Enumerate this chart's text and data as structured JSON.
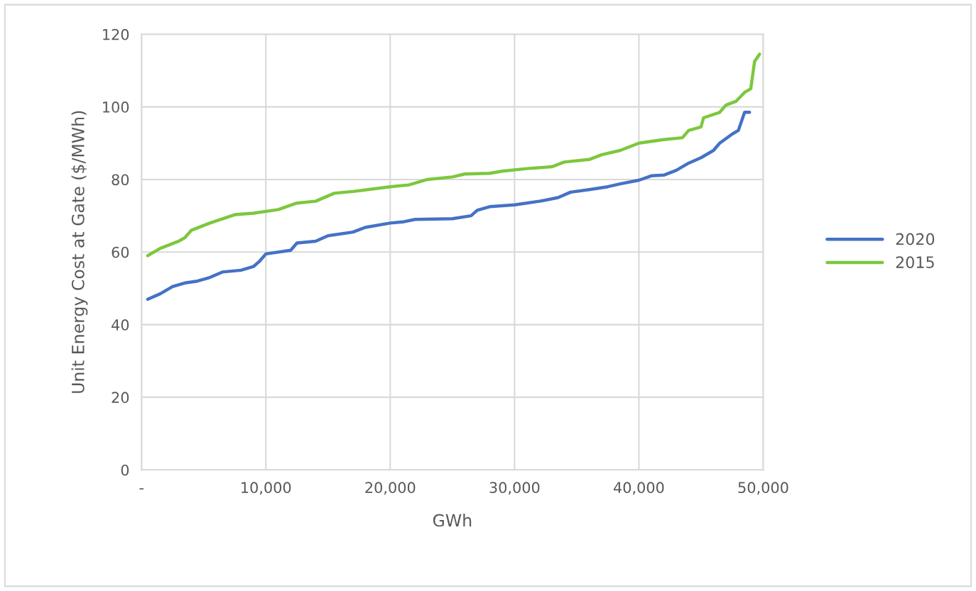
{
  "chart_data": {
    "type": "line",
    "xlabel": "GWh",
    "ylabel": "Unit Energy Cost at Gate ($/MWh)",
    "xlim": [
      0,
      50000
    ],
    "xticks": [
      {
        "value": 0,
        "label": "-"
      },
      {
        "value": 10000,
        "label": "10,000"
      },
      {
        "value": 20000,
        "label": "20,000"
      },
      {
        "value": 30000,
        "label": "30,000"
      },
      {
        "value": 40000,
        "label": "40,000"
      },
      {
        "value": 50000,
        "label": "50,000"
      }
    ],
    "ylim": [
      0,
      120
    ],
    "yticks": [
      0,
      20,
      40,
      60,
      80,
      100,
      120
    ],
    "grid": true,
    "legend": "right",
    "marker": "none",
    "line_style": "solid",
    "series": [
      {
        "name": "2020",
        "color": "#4472c4",
        "x": [
          500,
          1500,
          2500,
          3500,
          4500,
          5500,
          6500,
          8000,
          9000,
          9500,
          10000,
          12000,
          12500,
          14000,
          15000,
          17000,
          18000,
          20000,
          21000,
          22000,
          25000,
          26500,
          27000,
          28000,
          30000,
          32000,
          33500,
          34500,
          36000,
          37500,
          38500,
          40000,
          41000,
          42000,
          43000,
          44000,
          45000,
          46000,
          46500,
          47500,
          48000,
          48500,
          48900
        ],
        "values": [
          47,
          48.5,
          50.5,
          51.5,
          52,
          53,
          54.5,
          55,
          56,
          57.5,
          59.5,
          60.5,
          62.5,
          63,
          64.5,
          65.5,
          66.8,
          68,
          68.3,
          69,
          69.2,
          70,
          71.5,
          72.5,
          73,
          74,
          75,
          76.5,
          77.2,
          78,
          78.8,
          79.8,
          81,
          81.2,
          82.5,
          84.5,
          86,
          88,
          90,
          92.5,
          93.5,
          98.5,
          98.5
        ]
      },
      {
        "name": "2015",
        "color": "#7dc73e",
        "x": [
          500,
          1500,
          3000,
          3500,
          4000,
          5500,
          7500,
          9000,
          11000,
          12500,
          14000,
          15500,
          17000,
          20000,
          21500,
          23000,
          25000,
          26000,
          28000,
          29000,
          31000,
          33000,
          34000,
          36000,
          37000,
          38500,
          40000,
          42000,
          43500,
          44000,
          45000,
          45200,
          46500,
          47000,
          47800,
          48500,
          49000,
          49300,
          49700
        ],
        "values": [
          59,
          61,
          63,
          64,
          66,
          68,
          70.3,
          70.7,
          71.7,
          73.5,
          74,
          76.2,
          76.7,
          78,
          78.5,
          80,
          80.7,
          81.5,
          81.7,
          82.3,
          83,
          83.5,
          84.8,
          85.5,
          86.8,
          88,
          90,
          91,
          91.5,
          93.5,
          94.5,
          97,
          98.5,
          100.5,
          101.5,
          104,
          105,
          112.5,
          114.5
        ]
      }
    ]
  }
}
